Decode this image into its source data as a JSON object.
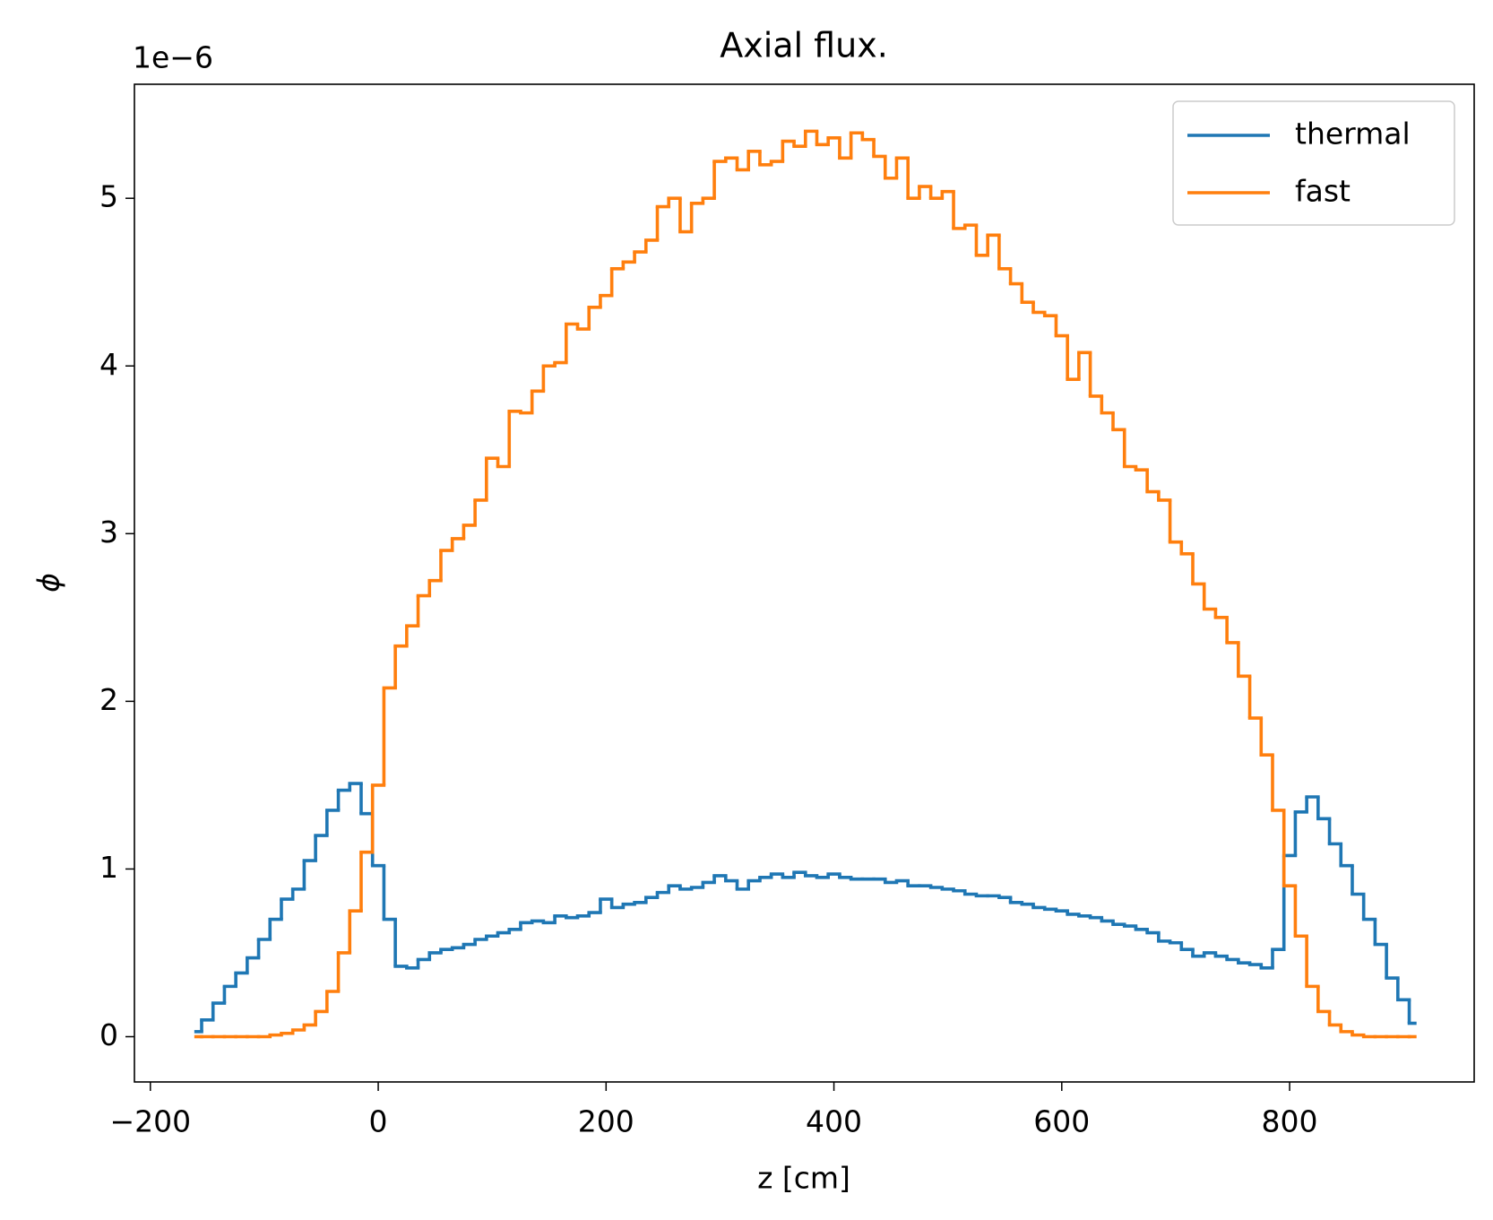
{
  "chart_data": {
    "type": "step",
    "title": "Axial flux.",
    "xlabel": "z [cm]",
    "ylabel": "ϕ",
    "offset_label": "1e−6",
    "legend": "upper right",
    "x": [
      -160,
      -150,
      -140,
      -130,
      -120,
      -110,
      -100,
      -90,
      -80,
      -70,
      -60,
      -50,
      -40,
      -30,
      -20,
      -10,
      0,
      10,
      20,
      30,
      40,
      50,
      60,
      70,
      80,
      90,
      100,
      110,
      120,
      130,
      140,
      150,
      160,
      170,
      180,
      190,
      200,
      210,
      220,
      230,
      240,
      250,
      260,
      270,
      280,
      290,
      300,
      310,
      320,
      330,
      340,
      350,
      360,
      370,
      380,
      390,
      400,
      410,
      420,
      430,
      440,
      450,
      460,
      470,
      480,
      490,
      500,
      510,
      520,
      530,
      540,
      550,
      560,
      570,
      580,
      590,
      600,
      610,
      620,
      630,
      640,
      650,
      660,
      670,
      680,
      690,
      700,
      710,
      720,
      730,
      740,
      750,
      760,
      770,
      780,
      790,
      800,
      810,
      820,
      830,
      840,
      850,
      860,
      870,
      880,
      890,
      900,
      910
    ],
    "series": [
      {
        "name": "thermal",
        "color": "#1f77b4",
        "values": [
          0.03,
          0.1,
          0.2,
          0.3,
          0.38,
          0.47,
          0.58,
          0.7,
          0.82,
          0.88,
          1.05,
          1.2,
          1.35,
          1.47,
          1.51,
          1.33,
          1.02,
          0.7,
          0.42,
          0.41,
          0.46,
          0.5,
          0.52,
          0.53,
          0.55,
          0.58,
          0.6,
          0.62,
          0.64,
          0.68,
          0.69,
          0.68,
          0.72,
          0.71,
          0.72,
          0.74,
          0.82,
          0.77,
          0.79,
          0.8,
          0.83,
          0.86,
          0.9,
          0.88,
          0.89,
          0.92,
          0.96,
          0.93,
          0.88,
          0.93,
          0.95,
          0.97,
          0.95,
          0.98,
          0.96,
          0.95,
          0.97,
          0.95,
          0.94,
          0.94,
          0.94,
          0.92,
          0.93,
          0.9,
          0.9,
          0.89,
          0.88,
          0.87,
          0.85,
          0.84,
          0.84,
          0.83,
          0.8,
          0.79,
          0.77,
          0.76,
          0.75,
          0.73,
          0.72,
          0.71,
          0.69,
          0.67,
          0.66,
          0.64,
          0.62,
          0.57,
          0.56,
          0.52,
          0.48,
          0.5,
          0.48,
          0.46,
          0.44,
          0.43,
          0.41,
          0.52,
          1.08,
          1.34,
          1.43,
          1.3,
          1.15,
          1.02,
          0.85,
          0.7,
          0.55,
          0.35,
          0.22,
          0.08
        ]
      },
      {
        "name": "fast",
        "color": "#ff7f0e",
        "values": [
          0,
          0,
          0,
          0,
          0,
          0,
          0,
          0.01,
          0.02,
          0.04,
          0.07,
          0.15,
          0.27,
          0.5,
          0.75,
          1.1,
          1.5,
          2.08,
          2.33,
          2.45,
          2.63,
          2.72,
          2.9,
          2.97,
          3.05,
          3.2,
          3.45,
          3.4,
          3.73,
          3.72,
          3.85,
          4.0,
          4.02,
          4.25,
          4.22,
          4.35,
          4.42,
          4.58,
          4.62,
          4.68,
          4.75,
          4.95,
          5.0,
          4.8,
          4.97,
          5.0,
          5.22,
          5.24,
          5.17,
          5.28,
          5.2,
          5.22,
          5.34,
          5.31,
          5.4,
          5.32,
          5.36,
          5.24,
          5.39,
          5.35,
          5.25,
          5.12,
          5.24,
          5.0,
          5.07,
          5.0,
          5.04,
          4.82,
          4.84,
          4.66,
          4.78,
          4.58,
          4.49,
          4.38,
          4.32,
          4.3,
          4.18,
          3.92,
          4.08,
          3.82,
          3.72,
          3.62,
          3.4,
          3.38,
          3.25,
          3.2,
          2.95,
          2.88,
          2.7,
          2.55,
          2.5,
          2.35,
          2.15,
          1.9,
          1.68,
          1.35,
          0.9,
          0.6,
          0.3,
          0.15,
          0.07,
          0.03,
          0.01,
          0,
          0,
          0,
          0,
          0
        ]
      }
    ],
    "xlim": [
      -214,
      962
    ],
    "xticks": [
      {
        "value": -200,
        "label": "−200"
      },
      0,
      200,
      400,
      600,
      800
    ],
    "ylim": [
      -0.27,
      5.68
    ],
    "yticks": [
      0,
      1,
      2,
      3,
      4,
      5
    ]
  }
}
